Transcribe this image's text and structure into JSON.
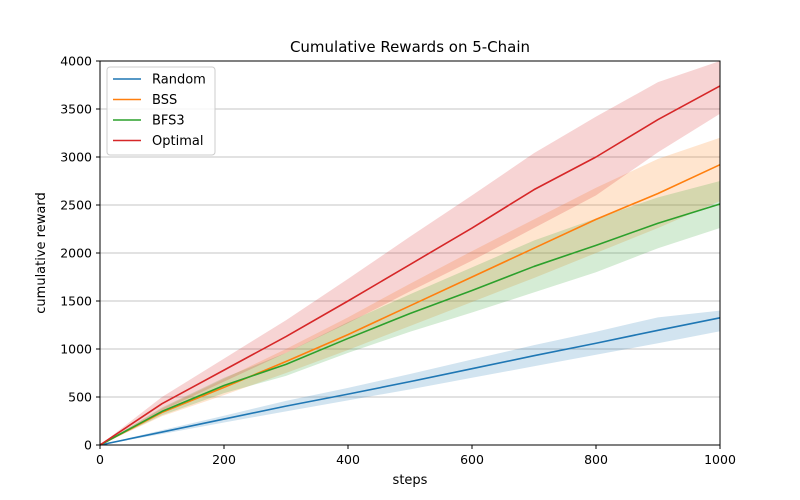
{
  "chart_data": {
    "type": "line",
    "title": "Cumulative Rewards on 5-Chain",
    "xlabel": "steps",
    "ylabel": "cumulative reward",
    "xlim": [
      0,
      1000
    ],
    "ylim": [
      0,
      4000
    ],
    "xticks": [
      0,
      200,
      400,
      600,
      800,
      1000
    ],
    "yticks": [
      0,
      500,
      1000,
      1500,
      2000,
      2500,
      3000,
      3500,
      4000
    ],
    "grid": "horizontal",
    "legend_position": "top-left",
    "x": [
      0,
      100,
      200,
      300,
      400,
      500,
      600,
      700,
      800,
      900,
      1000
    ],
    "series": [
      {
        "name": "Random",
        "color": "#1f77b4",
        "values": [
          0,
          135,
          270,
          405,
          530,
          660,
          795,
          930,
          1060,
          1195,
          1325
        ],
        "lower": [
          0,
          115,
          235,
          350,
          465,
          580,
          700,
          820,
          940,
          1060,
          1185
        ],
        "upper": [
          0,
          155,
          305,
          460,
          595,
          740,
          890,
          1040,
          1180,
          1330,
          1400
        ]
      },
      {
        "name": "BSS",
        "color": "#ff7f0e",
        "values": [
          0,
          340,
          600,
          870,
          1150,
          1450,
          1750,
          2050,
          2350,
          2620,
          2920
        ],
        "lower": [
          0,
          300,
          520,
          750,
          990,
          1240,
          1490,
          1740,
          2000,
          2260,
          2540
        ],
        "upper": [
          0,
          380,
          690,
          1000,
          1330,
          1680,
          2020,
          2350,
          2680,
          2980,
          3200
        ]
      },
      {
        "name": "BFS3",
        "color": "#2ca02c",
        "values": [
          0,
          350,
          620,
          840,
          1110,
          1370,
          1610,
          1860,
          2080,
          2310,
          2510
        ],
        "lower": [
          0,
          310,
          540,
          720,
          960,
          1180,
          1380,
          1590,
          1800,
          2050,
          2260
        ],
        "upper": [
          0,
          390,
          700,
          960,
          1280,
          1570,
          1850,
          2130,
          2360,
          2580,
          2750
        ]
      },
      {
        "name": "Optimal",
        "color": "#d62728",
        "values": [
          0,
          430,
          780,
          1130,
          1500,
          1880,
          2260,
          2660,
          3000,
          3390,
          3740
        ],
        "lower": [
          0,
          360,
          660,
          960,
          1270,
          1600,
          1920,
          2260,
          2600,
          3050,
          3450
        ],
        "upper": [
          0,
          500,
          900,
          1300,
          1730,
          2170,
          2600,
          3040,
          3420,
          3780,
          4000
        ]
      }
    ]
  }
}
